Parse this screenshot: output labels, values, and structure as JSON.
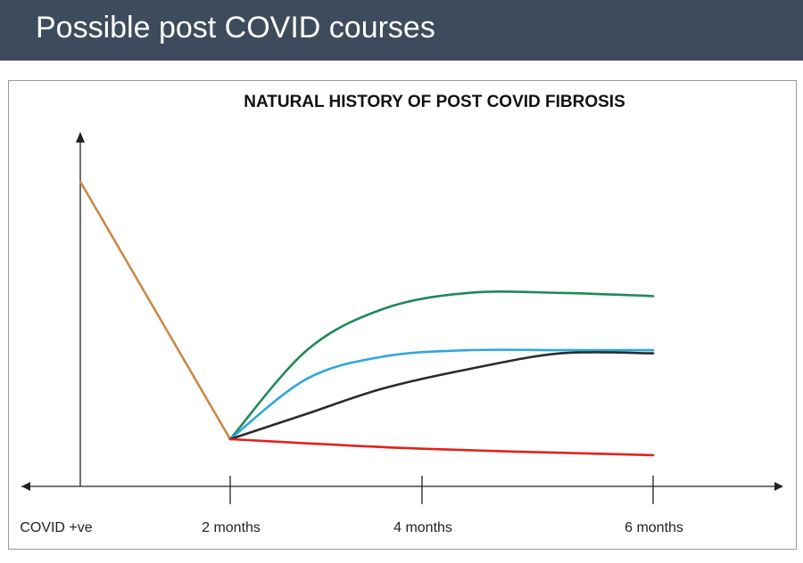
{
  "slide": {
    "title": "Possible post COVID courses"
  },
  "chart_data": {
    "type": "line",
    "title": "NATURAL HISTORY OF POST COVID FIBROSIS",
    "xlabel": "",
    "ylabel": "",
    "tick_labels": [
      "COVID +ve",
      "2 months",
      "4 months",
      "6 months"
    ],
    "x": [
      0,
      2,
      4,
      6
    ],
    "ylim": [
      0,
      100
    ],
    "grid": false,
    "series": [
      {
        "color": "#c98a48",
        "points": [
          [
            0,
            95
          ],
          [
            2,
            14
          ]
        ]
      },
      {
        "color": "#1e8a57",
        "points": [
          [
            2,
            14
          ],
          [
            2.8,
            42
          ],
          [
            3.6,
            55
          ],
          [
            4.4,
            60
          ],
          [
            5.2,
            60
          ],
          [
            6,
            59
          ]
        ]
      },
      {
        "color": "#2ea8dc",
        "points": [
          [
            2,
            14
          ],
          [
            2.8,
            33
          ],
          [
            3.6,
            40
          ],
          [
            4.4,
            42
          ],
          [
            5.2,
            42
          ],
          [
            6,
            42
          ]
        ]
      },
      {
        "color": "#2b2b2b",
        "points": [
          [
            2,
            14
          ],
          [
            2.8,
            22
          ],
          [
            3.6,
            30
          ],
          [
            4.4,
            36
          ],
          [
            5.2,
            41
          ],
          [
            6,
            41
          ]
        ]
      },
      {
        "color": "#e0241a",
        "points": [
          [
            2,
            14
          ],
          [
            4,
            11
          ],
          [
            6,
            9
          ]
        ]
      }
    ]
  }
}
